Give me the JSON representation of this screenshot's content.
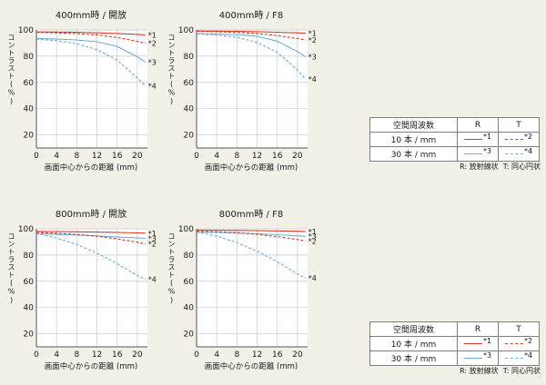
{
  "page": {
    "background": "#f3f1e7"
  },
  "colors": {
    "red": "#d93a20",
    "blue": "#6fadda",
    "grid": "#c9c9c9",
    "axis": "#555555",
    "text": "#1a1a1a"
  },
  "axis": {
    "ylabel": "コントラスト(%)",
    "xlabel": "画面中心からの距離 (mm)",
    "yticks": [
      100,
      80,
      60,
      40,
      20
    ],
    "xticks": [
      0,
      4,
      8,
      12,
      16,
      20
    ],
    "ylim": [
      10,
      100
    ],
    "xlim": [
      0,
      22
    ]
  },
  "chart_data": [
    {
      "type": "line",
      "title": "400mm時 / 開放",
      "xlabel": "画面中心からの距離 (mm)",
      "ylabel": "コントラスト(%)",
      "x": [
        0,
        4,
        8,
        12,
        16,
        20,
        21.6
      ],
      "series": [
        {
          "name": "10本/mm R",
          "label": "*1",
          "color": "red",
          "dash": false,
          "values": [
            98.5,
            98.4,
            98.2,
            97.8,
            97.3,
            96.6,
            96.2
          ]
        },
        {
          "name": "10本/mm T",
          "label": "*2",
          "color": "red",
          "dash": true,
          "values": [
            98.2,
            97.8,
            97.2,
            96.1,
            94.3,
            91.3,
            89.8
          ]
        },
        {
          "name": "30本/mm R",
          "label": "*3",
          "color": "blue",
          "dash": false,
          "values": [
            93.5,
            93.0,
            92.4,
            91.0,
            87.5,
            79.5,
            75.5
          ]
        },
        {
          "name": "30本/mm T",
          "label": "*4",
          "color": "blue",
          "dash": true,
          "values": [
            93.0,
            91.8,
            89.5,
            85.0,
            77.0,
            63.5,
            57.5
          ]
        }
      ]
    },
    {
      "type": "line",
      "title": "400mm時 / F8",
      "xlabel": "画面中心からの距離 (mm)",
      "ylabel": "コントラスト(%)",
      "x": [
        0,
        4,
        8,
        12,
        16,
        20,
        21.6
      ],
      "series": [
        {
          "name": "10本/mm R",
          "label": "*1",
          "color": "red",
          "dash": false,
          "values": [
            99.2,
            99.1,
            99.0,
            98.7,
            98.3,
            97.8,
            97.5
          ]
        },
        {
          "name": "10本/mm T",
          "label": "*2",
          "color": "red",
          "dash": true,
          "values": [
            99.0,
            98.6,
            98.1,
            97.2,
            95.7,
            93.5,
            92.4
          ]
        },
        {
          "name": "30本/mm R",
          "label": "*3",
          "color": "blue",
          "dash": false,
          "values": [
            97.2,
            96.9,
            96.4,
            95.2,
            91.5,
            83.5,
            79.5
          ]
        },
        {
          "name": "30本/mm T",
          "label": "*4",
          "color": "blue",
          "dash": true,
          "values": [
            97.0,
            96.1,
            94.4,
            90.5,
            83.0,
            69.5,
            62.5
          ]
        }
      ]
    },
    {
      "type": "line",
      "title": "800mm時 / 開放",
      "xlabel": "画面中心からの距離 (mm)",
      "ylabel": "コントラスト(%)",
      "x": [
        0,
        4,
        8,
        12,
        16,
        20,
        21.6
      ],
      "series": [
        {
          "name": "10本/mm R",
          "label": "*1",
          "color": "red",
          "dash": false,
          "values": [
            98.0,
            97.9,
            97.7,
            97.5,
            97.2,
            96.9,
            96.7
          ]
        },
        {
          "name": "10本/mm T",
          "label": "*2",
          "color": "red",
          "dash": true,
          "values": [
            97.2,
            96.6,
            95.7,
            94.3,
            92.3,
            89.8,
            88.5
          ]
        },
        {
          "name": "30本/mm R",
          "label": "*3",
          "color": "blue",
          "dash": false,
          "values": [
            96.2,
            95.8,
            95.3,
            94.6,
            93.8,
            93.0,
            92.7
          ]
        },
        {
          "name": "30本/mm T",
          "label": "*4",
          "color": "blue",
          "dash": true,
          "values": [
            96.5,
            93.0,
            88.0,
            81.5,
            73.5,
            64.5,
            61.5
          ]
        }
      ]
    },
    {
      "type": "line",
      "title": "800mm時 / F8",
      "xlabel": "画面中心からの距離 (mm)",
      "ylabel": "コントラスト(%)",
      "x": [
        0,
        4,
        8,
        12,
        16,
        20,
        21.6
      ],
      "series": [
        {
          "name": "10本/mm R",
          "label": "*1",
          "color": "red",
          "dash": false,
          "values": [
            99.0,
            98.9,
            98.8,
            98.6,
            98.4,
            98.1,
            98.0
          ]
        },
        {
          "name": "10本/mm T",
          "label": "*2",
          "color": "red",
          "dash": true,
          "values": [
            98.2,
            97.7,
            97.0,
            95.8,
            94.0,
            91.8,
            90.8
          ]
        },
        {
          "name": "30本/mm R",
          "label": "*3",
          "color": "blue",
          "dash": false,
          "values": [
            97.5,
            97.2,
            96.8,
            96.2,
            95.5,
            94.7,
            94.3
          ]
        },
        {
          "name": "30本/mm T",
          "label": "*4",
          "color": "blue",
          "dash": true,
          "values": [
            97.5,
            94.5,
            89.5,
            83.0,
            75.0,
            65.5,
            62.5
          ]
        }
      ]
    }
  ],
  "legend": {
    "header": [
      "空間周波数",
      "R",
      "T"
    ],
    "rows": [
      {
        "freq": "10 本 / mm",
        "r": {
          "label": "*1",
          "color": "red",
          "dash": false
        },
        "t": {
          "label": "*2",
          "color": "red",
          "dash": true
        }
      },
      {
        "freq": "30 本 / mm",
        "r": {
          "label": "*3",
          "color": "blue",
          "dash": false
        },
        "t": {
          "label": "*4",
          "color": "blue",
          "dash": true
        }
      }
    ],
    "note": "R: 放射線状  T: 同心円状"
  }
}
